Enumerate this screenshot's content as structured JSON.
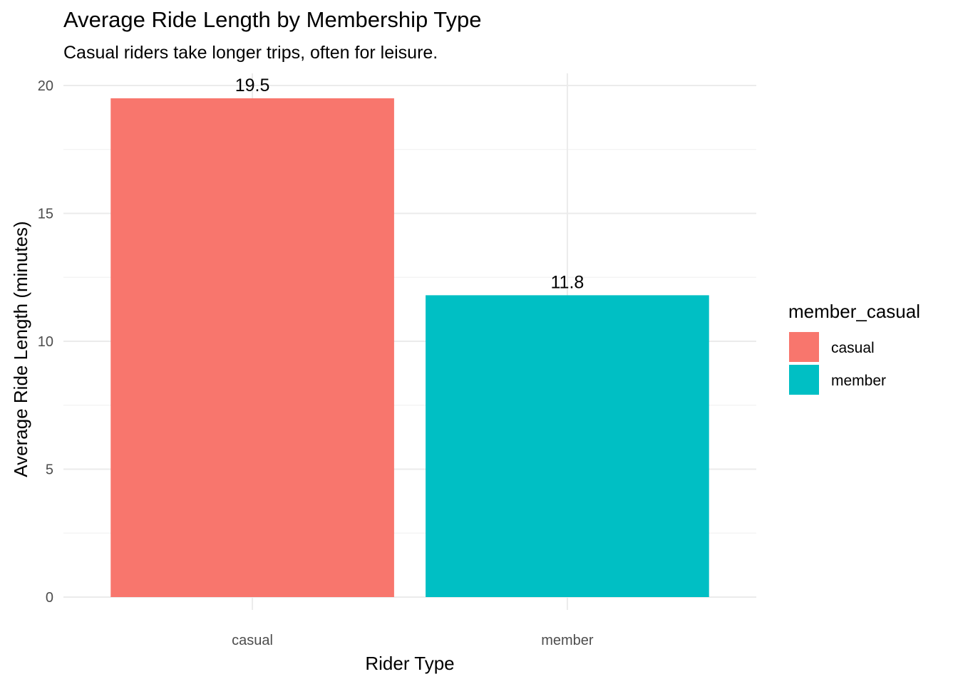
{
  "chart_data": {
    "type": "bar",
    "title": "Average Ride Length by Membership Type",
    "subtitle": "Casual riders take longer trips, often for leisure.",
    "xlabel": "Rider Type",
    "ylabel": "Average Ride Length (minutes)",
    "categories": [
      "casual",
      "member"
    ],
    "values": [
      19.5,
      11.8
    ],
    "value_labels": [
      "19.5",
      "11.8"
    ],
    "colors": [
      "#F8766D",
      "#00BFC4"
    ],
    "ylim": [
      0,
      20.9
    ],
    "yticks": [
      0,
      5,
      10,
      15,
      20
    ],
    "ytick_labels": [
      "0",
      "5",
      "10",
      "15",
      "20"
    ],
    "grid": true,
    "legend": {
      "title": "member_casual",
      "position": "right",
      "entries": [
        "casual",
        "member"
      ]
    }
  }
}
